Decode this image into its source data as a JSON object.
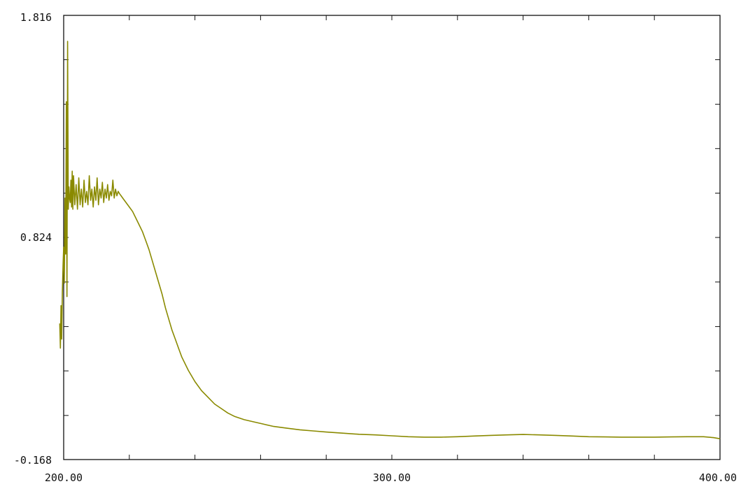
{
  "chart_data": {
    "type": "line",
    "title": "",
    "xlabel": "",
    "ylabel": "",
    "xlim": [
      200.0,
      400.0
    ],
    "ylim": [
      -0.168,
      1.816
    ],
    "grid": false,
    "legend": "none",
    "line_color": "#8a8a00",
    "x_tick_labels": [
      {
        "value": 200.0,
        "label": "200.00"
      },
      {
        "value": 300.0,
        "label": "300.00"
      },
      {
        "value": 400.0,
        "label": "400.00"
      }
    ],
    "y_tick_labels": [
      {
        "value": -0.168,
        "label": "-0.168"
      },
      {
        "value": 0.824,
        "label": "0.824"
      },
      {
        "value": 1.816,
        "label": "1.816"
      }
    ],
    "x_minor_ticks": [
      200,
      220,
      240,
      260,
      280,
      300,
      320,
      340,
      360,
      380,
      400
    ],
    "y_minor_ticks": [
      -0.168,
      0.029,
      0.228,
      0.426,
      0.625,
      0.824,
      1.022,
      1.221,
      1.419,
      1.618,
      1.816
    ],
    "series": [
      {
        "x": [
          198.8,
          199.0,
          199.2,
          199.4,
          199.6,
          199.8,
          200.0,
          200.2,
          200.4,
          200.6,
          200.8,
          201.0,
          201.2,
          201.4,
          201.6,
          201.8,
          202.0,
          202.2,
          202.4,
          202.6,
          202.8,
          203.0,
          203.4,
          203.8,
          204.2,
          204.6,
          205.0,
          205.4,
          205.8,
          206.2,
          206.6,
          207.0,
          207.4,
          207.8,
          208.2,
          208.6,
          209.0,
          209.4,
          209.8,
          210.2,
          210.6,
          211.0,
          211.4,
          211.8,
          212.2,
          212.6,
          213.0,
          213.4,
          213.8,
          214.2,
          214.6,
          215.0,
          215.4,
          215.8,
          216.2,
          216.6,
          217.0,
          217.5,
          218.0,
          219.0,
          220.0,
          221.0,
          222.0,
          223.0,
          224.0,
          225.0,
          226.0,
          227.0,
          228.0,
          229.0,
          230.0,
          231.0,
          232.0,
          233.0,
          234.0,
          235.0,
          236.0,
          238.0,
          240.0,
          242.0,
          244.0,
          246.0,
          248.0,
          250.0,
          252.0,
          255.0,
          258.0,
          261.0,
          264.0,
          268.0,
          272.0,
          276.0,
          280.0,
          285.0,
          290.0,
          295.0,
          300.0,
          305.0,
          310.0,
          315.0,
          320.0,
          325.0,
          330.0,
          335.0,
          340.0,
          345.0,
          350.0,
          355.0,
          360.0,
          365.0,
          370.0,
          375.0,
          380.0,
          385.0,
          390.0,
          395.0,
          398.0,
          400.0
        ],
        "values": [
          0.44,
          0.33,
          0.52,
          0.37,
          0.58,
          0.7,
          0.78,
          0.62,
          1.0,
          0.75,
          1.43,
          0.56,
          1.7,
          0.95,
          1.05,
          1.0,
          0.98,
          1.08,
          0.96,
          1.12,
          0.95,
          1.1,
          0.97,
          1.06,
          0.95,
          1.09,
          0.97,
          1.04,
          0.96,
          1.08,
          0.98,
          1.03,
          0.97,
          1.1,
          0.99,
          1.04,
          0.96,
          1.05,
          0.99,
          1.09,
          0.97,
          1.04,
          1.0,
          1.07,
          0.98,
          1.04,
          1.0,
          1.06,
          0.99,
          1.03,
          1.01,
          1.08,
          1.0,
          1.04,
          1.01,
          1.03,
          1.02,
          1.01,
          1.0,
          0.98,
          0.96,
          0.94,
          0.91,
          0.88,
          0.85,
          0.81,
          0.77,
          0.72,
          0.67,
          0.62,
          0.57,
          0.51,
          0.46,
          0.41,
          0.37,
          0.33,
          0.29,
          0.23,
          0.18,
          0.14,
          0.11,
          0.08,
          0.06,
          0.04,
          0.025,
          0.01,
          0.0,
          -0.01,
          -0.02,
          -0.028,
          -0.035,
          -0.04,
          -0.045,
          -0.05,
          -0.055,
          -0.058,
          -0.062,
          -0.066,
          -0.068,
          -0.068,
          -0.066,
          -0.063,
          -0.06,
          -0.058,
          -0.056,
          -0.058,
          -0.06,
          -0.063,
          -0.066,
          -0.067,
          -0.068,
          -0.068,
          -0.068,
          -0.067,
          -0.066,
          -0.066,
          -0.07,
          -0.075
        ]
      }
    ]
  }
}
